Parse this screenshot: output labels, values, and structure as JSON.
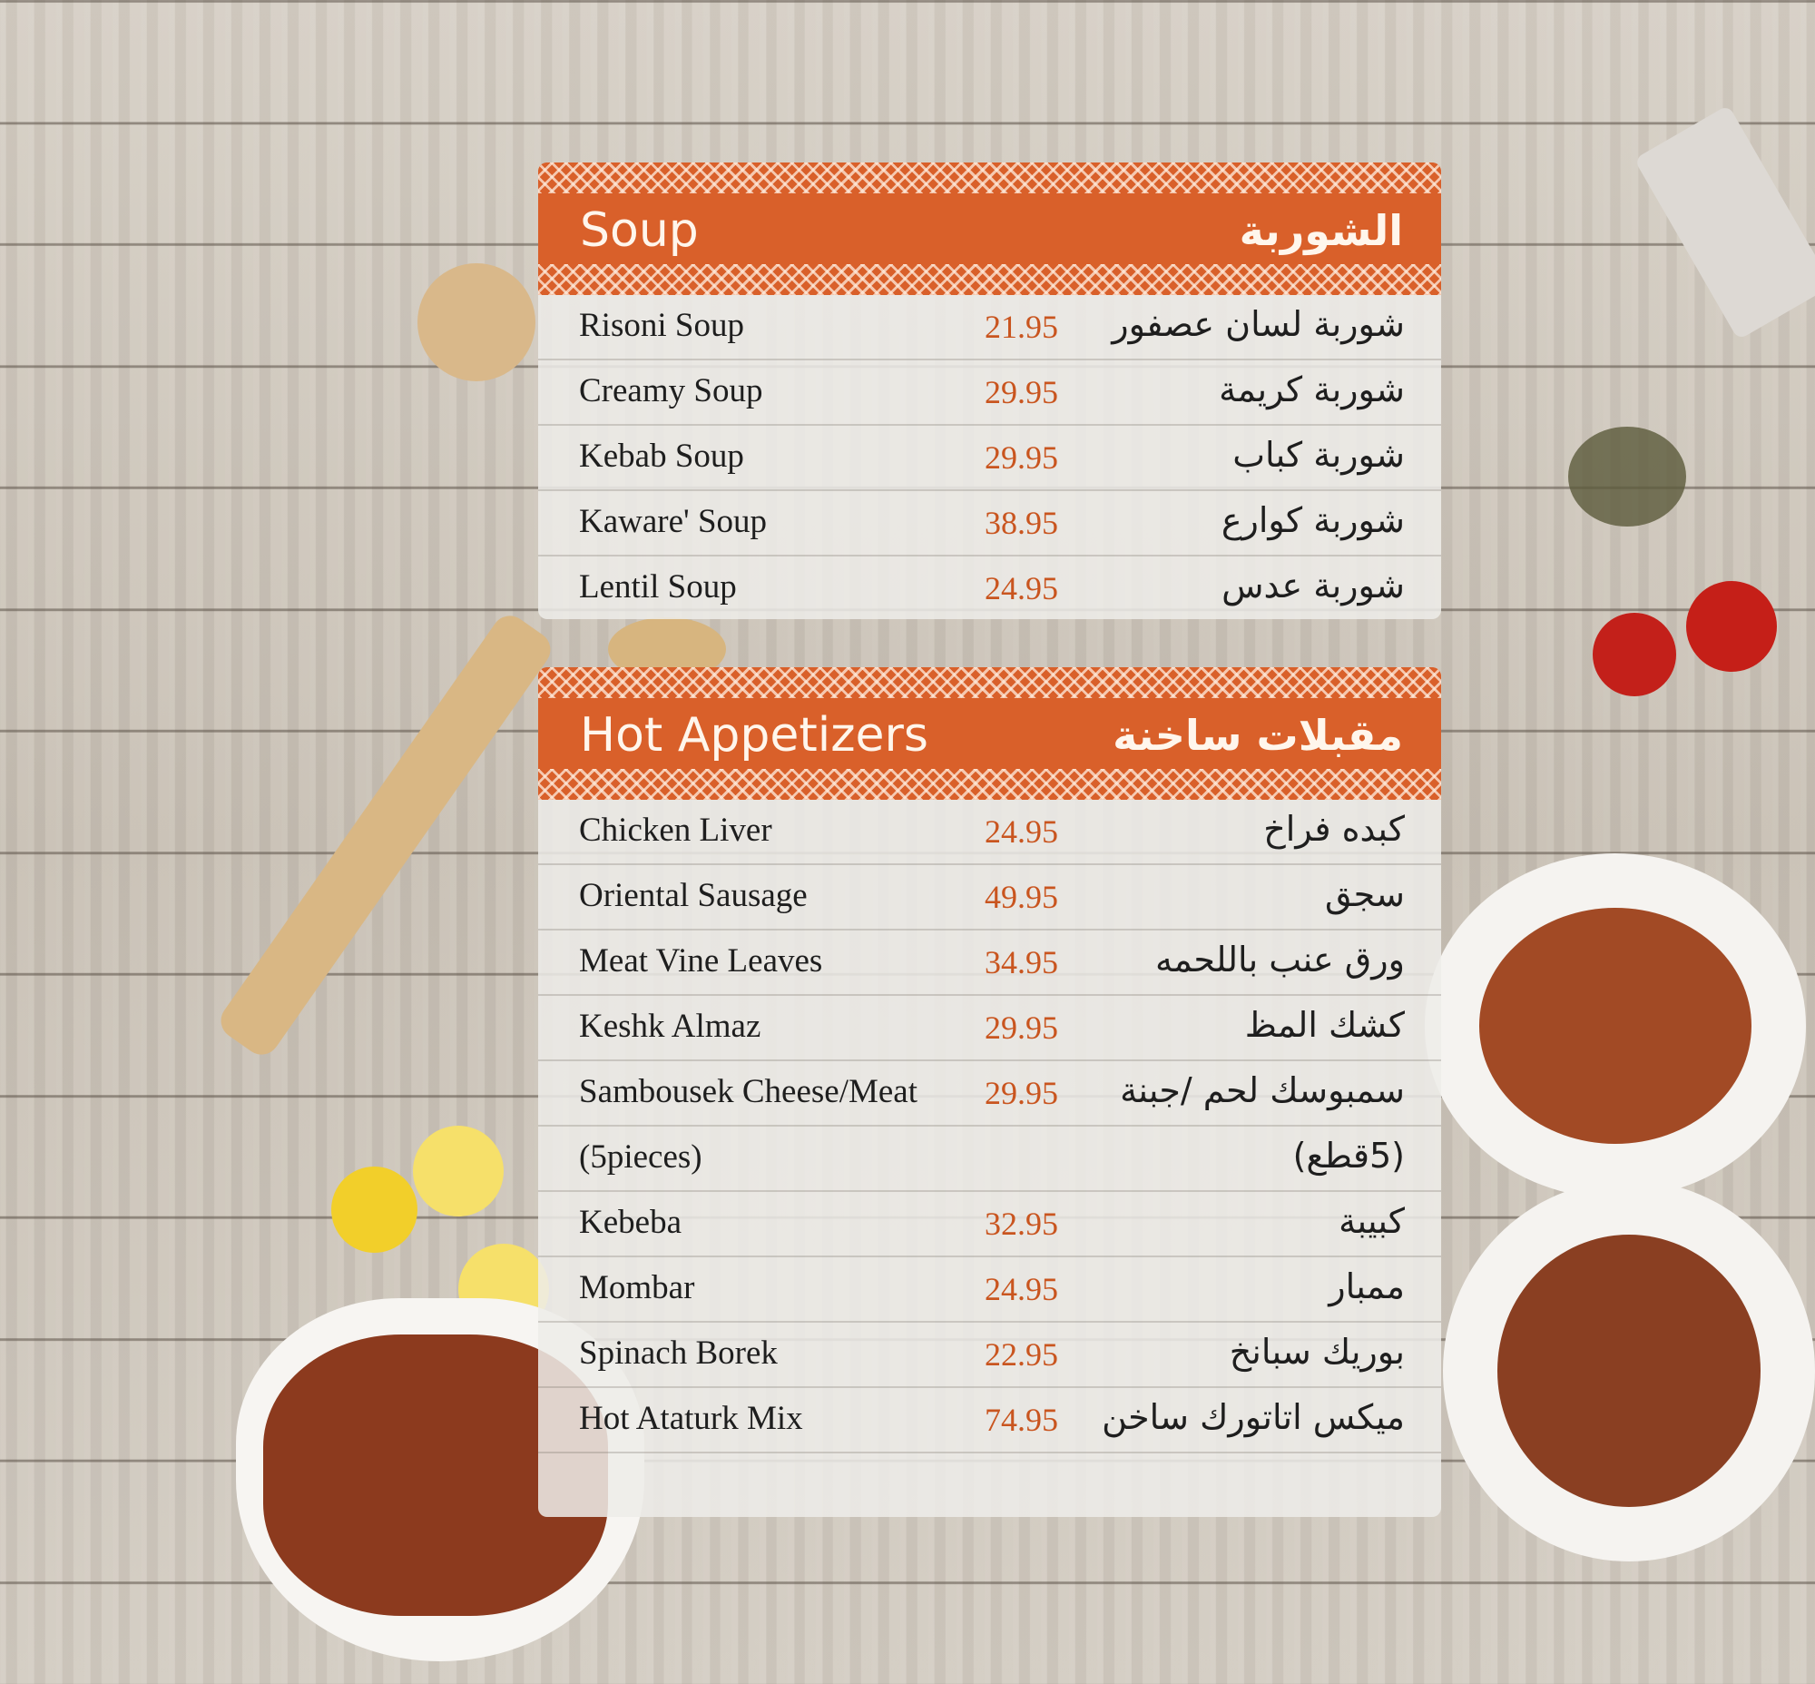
{
  "sections": [
    {
      "title_en": "Soup",
      "title_ar": "الشوربة",
      "items": [
        {
          "en": "Risoni Soup",
          "price": "21.95",
          "ar": "شوربة لسان عصفور"
        },
        {
          "en": "Creamy Soup",
          "price": "29.95",
          "ar": "شوربة كريمة"
        },
        {
          "en": "Kebab Soup",
          "price": "29.95",
          "ar": "شوربة كباب"
        },
        {
          "en": "Kaware' Soup",
          "price": "38.95",
          "ar": "شوربة كوارع"
        },
        {
          "en": "Lentil Soup",
          "price": "24.95",
          "ar": "شوربة عدس"
        }
      ]
    },
    {
      "title_en": "Hot Appetizers",
      "title_ar": "مقبلات ساخنة",
      "items": [
        {
          "en": "Chicken Liver",
          "price": "24.95",
          "ar": "كبده فراخ"
        },
        {
          "en": "Oriental Sausage",
          "price": "49.95",
          "ar": "سجق"
        },
        {
          "en": "Meat Vine Leaves",
          "price": "34.95",
          "ar": "ورق عنب باللحمه"
        },
        {
          "en": "Keshk Almaz",
          "price": "29.95",
          "ar": "كشك المظ"
        },
        {
          "en": "Sambousek Cheese/Meat",
          "price": "29.95",
          "ar": "سمبوسك لحم /جبنة"
        },
        {
          "en": "(5pieces)",
          "price": "",
          "ar": "(5قطع)"
        },
        {
          "en": "Kebeba",
          "price": "32.95",
          "ar": "كبيبة"
        },
        {
          "en": "Mombar",
          "price": "24.95",
          "ar": "ممبار"
        },
        {
          "en": "Spinach Borek",
          "price": "22.95",
          "ar": "بوريك سبانخ"
        },
        {
          "en": "Hot Ataturk Mix",
          "price": "74.95",
          "ar": "ميكس اتاتورك ساخن"
        }
      ]
    }
  ],
  "colors": {
    "header": "#d9602a",
    "price": "#c9551f"
  }
}
